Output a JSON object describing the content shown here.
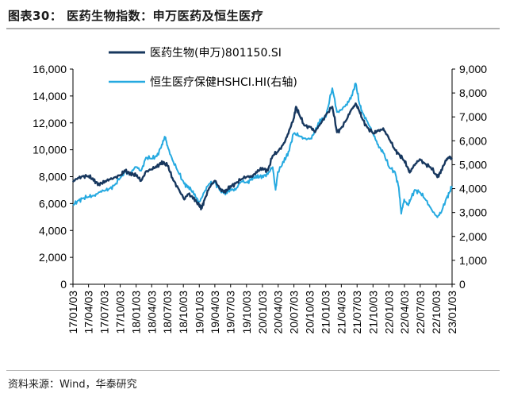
{
  "header": {
    "title": "图表30：  医药生物指数：申万医药及恒生医疗"
  },
  "footer": {
    "source": "资料来源：Wind，华泰研究"
  },
  "chart_data": {
    "type": "line",
    "title": "",
    "xlabel": "",
    "ylabel": "",
    "x_ticks": [
      "17/01/03",
      "17/04/03",
      "17/07/03",
      "17/10/03",
      "18/01/03",
      "18/04/03",
      "18/07/03",
      "18/10/03",
      "19/01/03",
      "19/04/03",
      "19/07/03",
      "19/10/03",
      "20/01/03",
      "20/04/03",
      "20/07/03",
      "20/10/03",
      "21/01/03",
      "21/04/03",
      "21/07/03",
      "21/10/03",
      "22/01/03",
      "22/04/03",
      "22/07/03",
      "22/10/03",
      "23/01/03"
    ],
    "y_left": {
      "range": [
        0,
        16000
      ],
      "ticks": [
        "0",
        "2,000",
        "4,000",
        "6,000",
        "8,000",
        "10,000",
        "12,000",
        "14,000",
        "16,000"
      ]
    },
    "y_right": {
      "range": [
        0,
        9000
      ],
      "ticks": [
        "0",
        "1,000",
        "2,000",
        "3,000",
        "4,000",
        "5,000",
        "6,000",
        "7,000",
        "8,000",
        "9,000"
      ]
    },
    "grid": false,
    "legend_position": "top-left",
    "series": [
      {
        "name": "医药生物(申万)801150.SI",
        "axis": "left",
        "color": "#17375e",
        "points": [
          [
            "2017-01-03",
            7600
          ],
          [
            "2017-02-01",
            7900
          ],
          [
            "2017-03-01",
            8050
          ],
          [
            "2017-04-03",
            8050
          ],
          [
            "2017-05-02",
            7700
          ],
          [
            "2017-06-01",
            7500
          ],
          [
            "2017-07-03",
            7550
          ],
          [
            "2017-08-01",
            7800
          ],
          [
            "2017-09-01",
            7950
          ],
          [
            "2017-10-09",
            8150
          ],
          [
            "2017-11-01",
            8400
          ],
          [
            "2017-12-01",
            8300
          ],
          [
            "2018-01-03",
            8050
          ],
          [
            "2018-02-01",
            7700
          ],
          [
            "2018-03-01",
            8400
          ],
          [
            "2018-04-03",
            8550
          ],
          [
            "2018-05-02",
            8700
          ],
          [
            "2018-06-01",
            9150
          ],
          [
            "2018-07-03",
            8800
          ],
          [
            "2018-08-01",
            7900
          ],
          [
            "2018-09-03",
            7150
          ],
          [
            "2018-10-08",
            6300
          ],
          [
            "2018-11-01",
            6700
          ],
          [
            "2018-12-03",
            6450
          ],
          [
            "2019-01-03",
            5800
          ],
          [
            "2019-01-15",
            5650
          ],
          [
            "2019-02-01",
            6250
          ],
          [
            "2019-03-01",
            7150
          ],
          [
            "2019-04-03",
            7700
          ],
          [
            "2019-05-06",
            7100
          ],
          [
            "2019-06-03",
            6800
          ],
          [
            "2019-07-01",
            7300
          ],
          [
            "2019-08-01",
            7500
          ],
          [
            "2019-09-02",
            7800
          ],
          [
            "2019-10-08",
            8000
          ],
          [
            "2019-11-01",
            8050
          ],
          [
            "2019-12-02",
            8300
          ],
          [
            "2020-01-03",
            8650
          ],
          [
            "2020-02-03",
            8450
          ],
          [
            "2020-03-02",
            9550
          ],
          [
            "2020-04-01",
            9850
          ],
          [
            "2020-05-06",
            10500
          ],
          [
            "2020-06-01",
            11200
          ],
          [
            "2020-07-01",
            12300
          ],
          [
            "2020-07-15",
            13200
          ],
          [
            "2020-08-03",
            12600
          ],
          [
            "2020-09-01",
            11800
          ],
          [
            "2020-10-09",
            11700
          ],
          [
            "2020-11-02",
            11300
          ],
          [
            "2020-12-01",
            11900
          ],
          [
            "2021-01-04",
            12600
          ],
          [
            "2021-02-10",
            13200
          ],
          [
            "2021-03-09",
            11300
          ],
          [
            "2021-04-01",
            11600
          ],
          [
            "2021-05-06",
            12300
          ],
          [
            "2021-06-01",
            13000
          ],
          [
            "2021-06-25",
            13450
          ],
          [
            "2021-07-15",
            12900
          ],
          [
            "2021-08-02",
            12300
          ],
          [
            "2021-09-01",
            11650
          ],
          [
            "2021-10-08",
            11200
          ],
          [
            "2021-11-01",
            11400
          ],
          [
            "2021-12-01",
            11600
          ],
          [
            "2022-01-04",
            10800
          ],
          [
            "2022-02-07",
            10000
          ],
          [
            "2022-03-01",
            9700
          ],
          [
            "2022-04-01",
            9200
          ],
          [
            "2022-04-26",
            8500
          ],
          [
            "2022-05-05",
            8400
          ],
          [
            "2022-06-01",
            8850
          ],
          [
            "2022-07-01",
            9300
          ],
          [
            "2022-08-01",
            8950
          ],
          [
            "2022-09-01",
            8700
          ],
          [
            "2022-10-10",
            7950
          ],
          [
            "2022-11-01",
            8500
          ],
          [
            "2022-12-01",
            9200
          ],
          [
            "2022-12-20",
            9500
          ],
          [
            "2023-01-03",
            9300
          ]
        ]
      },
      {
        "name": "恒生医疗保健HSHCI.HI(右轴)",
        "axis": "right",
        "color": "#25a9e0",
        "points": [
          [
            "2017-01-03",
            3300
          ],
          [
            "2017-02-01",
            3500
          ],
          [
            "2017-03-01",
            3600
          ],
          [
            "2017-04-03",
            3650
          ],
          [
            "2017-05-02",
            3700
          ],
          [
            "2017-06-01",
            3850
          ],
          [
            "2017-07-03",
            3900
          ],
          [
            "2017-08-01",
            4000
          ],
          [
            "2017-09-01",
            4150
          ],
          [
            "2017-10-09",
            4500
          ],
          [
            "2017-11-01",
            4700
          ],
          [
            "2017-12-01",
            4650
          ],
          [
            "2018-01-03",
            4900
          ],
          [
            "2018-02-01",
            4750
          ],
          [
            "2018-03-01",
            5300
          ],
          [
            "2018-04-03",
            5250
          ],
          [
            "2018-05-02",
            5350
          ],
          [
            "2018-06-01",
            5850
          ],
          [
            "2018-06-20",
            6150
          ],
          [
            "2018-07-03",
            5800
          ],
          [
            "2018-08-01",
            5200
          ],
          [
            "2018-09-03",
            4700
          ],
          [
            "2018-10-08",
            4200
          ],
          [
            "2018-11-01",
            4100
          ],
          [
            "2018-12-03",
            3750
          ],
          [
            "2019-01-03",
            3450
          ],
          [
            "2019-02-01",
            3850
          ],
          [
            "2019-03-01",
            4200
          ],
          [
            "2019-04-03",
            4250
          ],
          [
            "2019-05-06",
            3950
          ],
          [
            "2019-06-03",
            3750
          ],
          [
            "2019-07-01",
            4000
          ],
          [
            "2019-08-01",
            3950
          ],
          [
            "2019-09-02",
            4300
          ],
          [
            "2019-10-08",
            4250
          ],
          [
            "2019-11-01",
            4450
          ],
          [
            "2019-12-02",
            4450
          ],
          [
            "2020-01-03",
            4550
          ],
          [
            "2020-02-03",
            4600
          ],
          [
            "2020-03-02",
            4900
          ],
          [
            "2020-03-19",
            3950
          ],
          [
            "2020-04-01",
            4700
          ],
          [
            "2020-05-06",
            5100
          ],
          [
            "2020-06-01",
            5550
          ],
          [
            "2020-07-01",
            6300
          ],
          [
            "2020-08-03",
            6200
          ],
          [
            "2020-09-01",
            6100
          ],
          [
            "2020-10-09",
            6100
          ],
          [
            "2020-11-02",
            6350
          ],
          [
            "2020-12-01",
            6900
          ],
          [
            "2021-01-04",
            7000
          ],
          [
            "2021-02-10",
            8200
          ],
          [
            "2021-03-09",
            7200
          ],
          [
            "2021-04-01",
            7300
          ],
          [
            "2021-05-06",
            7500
          ],
          [
            "2021-06-01",
            7900
          ],
          [
            "2021-06-25",
            8400
          ],
          [
            "2021-07-15",
            7600
          ],
          [
            "2021-08-02",
            7200
          ],
          [
            "2021-09-01",
            6800
          ],
          [
            "2021-10-08",
            6200
          ],
          [
            "2021-11-01",
            5850
          ],
          [
            "2021-12-01",
            5500
          ],
          [
            "2022-01-04",
            4900
          ],
          [
            "2022-02-07",
            4700
          ],
          [
            "2022-03-01",
            4050
          ],
          [
            "2022-03-15",
            2950
          ],
          [
            "2022-04-01",
            3550
          ],
          [
            "2022-04-26",
            3300
          ],
          [
            "2022-05-05",
            3500
          ],
          [
            "2022-06-01",
            3950
          ],
          [
            "2022-07-01",
            3850
          ],
          [
            "2022-08-01",
            3550
          ],
          [
            "2022-09-01",
            3200
          ],
          [
            "2022-10-10",
            2800
          ],
          [
            "2022-11-01",
            3000
          ],
          [
            "2022-12-01",
            3600
          ],
          [
            "2022-12-20",
            3850
          ],
          [
            "2023-01-03",
            4100
          ]
        ]
      }
    ]
  }
}
